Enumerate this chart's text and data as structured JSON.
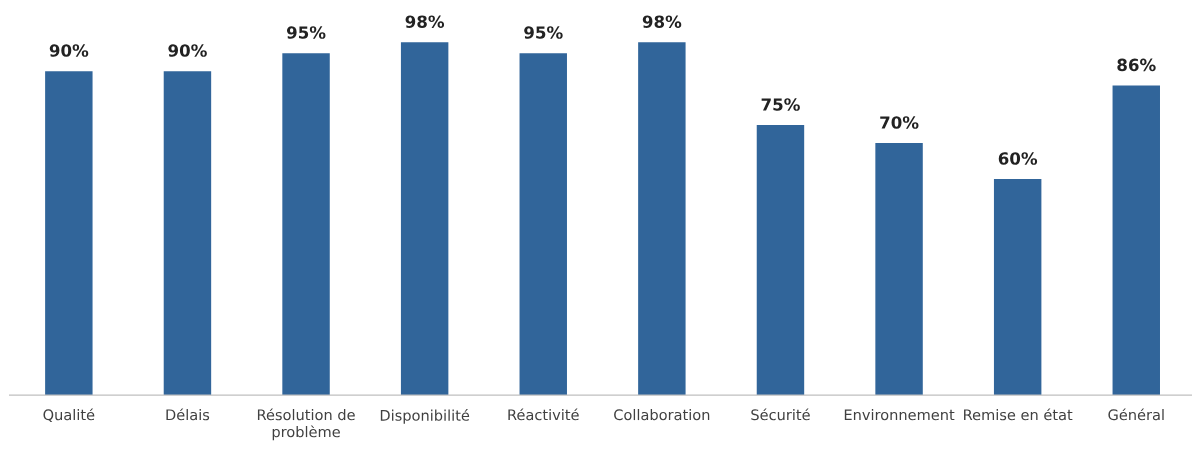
{
  "chart_data": {
    "type": "bar",
    "categories": [
      "Qualité",
      "Délais",
      "Résolution de problème",
      "Disponibilité",
      "Réactivité",
      "Collaboration",
      "Sécurité",
      "Environnement",
      "Remise en état",
      "Général"
    ],
    "values": [
      90,
      90,
      95,
      98,
      95,
      98,
      75,
      70,
      60,
      86
    ],
    "value_labels": [
      "90%",
      "90%",
      "95%",
      "98%",
      "95%",
      "98%",
      "75%",
      "70%",
      "60%",
      "86%"
    ],
    "color": "#31659a",
    "tick_labels": "x"
  }
}
